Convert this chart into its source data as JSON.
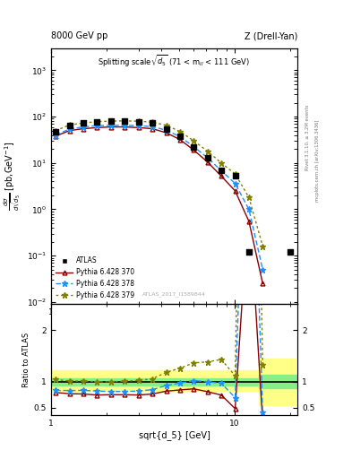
{
  "title_left": "8000 GeV pp",
  "title_right": "Z (Drell-Yan)",
  "panel_title": "Splitting scale $\\sqrt{d_5}$ (71 < m$_{ll}$ < 111 GeV)",
  "watermark": "ATLAS_2017_I1589844",
  "right_label1": "Rivet 3.1.10, ≥ 3.2M events",
  "right_label2": "mcplots.cern.ch [arXiv:1306.3436]",
  "atlas_x": [
    1.06,
    1.26,
    1.5,
    1.78,
    2.12,
    2.52,
    3.0,
    3.56,
    4.24,
    5.04,
    5.99,
    7.12,
    8.47,
    10.07,
    11.97,
    20.0
  ],
  "atlas_y": [
    48.0,
    65.0,
    72.0,
    78.0,
    80.0,
    80.0,
    78.0,
    72.0,
    55.0,
    38.0,
    22.0,
    13.0,
    7.0,
    5.2,
    0.12,
    0.12
  ],
  "py370_x": [
    1.06,
    1.26,
    1.5,
    1.78,
    2.12,
    2.52,
    3.0,
    3.56,
    4.24,
    5.04,
    5.99,
    7.12,
    8.47,
    10.07,
    11.97,
    14.23
  ],
  "py370_y": [
    38.0,
    50.0,
    55.0,
    58.0,
    60.0,
    60.0,
    58.0,
    55.0,
    45.0,
    32.0,
    19.0,
    10.5,
    5.2,
    2.5,
    0.55,
    0.025
  ],
  "py378_x": [
    1.06,
    1.26,
    1.5,
    1.78,
    2.12,
    2.52,
    3.0,
    3.56,
    4.24,
    5.04,
    5.99,
    7.12,
    8.47,
    10.07,
    11.97,
    14.23
  ],
  "py378_y": [
    40.0,
    54.0,
    60.0,
    64.0,
    65.0,
    65.0,
    64.0,
    61.0,
    51.0,
    37.0,
    22.5,
    13.0,
    6.8,
    3.6,
    1.0,
    0.05
  ],
  "py379_x": [
    1.06,
    1.26,
    1.5,
    1.78,
    2.12,
    2.52,
    3.0,
    3.56,
    4.24,
    5.04,
    5.99,
    7.12,
    8.47,
    10.07,
    11.97,
    14.23
  ],
  "py379_y": [
    50.0,
    66.0,
    73.0,
    78.0,
    80.0,
    81.0,
    80.0,
    76.0,
    65.0,
    48.0,
    30.0,
    18.0,
    10.0,
    5.8,
    1.8,
    0.16
  ],
  "atlas_color": "#000000",
  "py370_color": "#8B0000",
  "py378_color": "#1E90FF",
  "py379_color": "#808000",
  "band_yellow_lo": 0.82,
  "band_yellow_hi": 1.22,
  "band_green_lo": 0.93,
  "band_green_hi": 1.07,
  "band_yellow_color": "#FFFF88",
  "band_green_color": "#88EE88",
  "last_band_x": 13.5,
  "last_band_yellow_lo": 0.55,
  "last_band_yellow_hi": 1.45,
  "last_band_green_lo": 0.88,
  "last_band_green_hi": 1.13,
  "xlim": [
    1.0,
    22.0
  ],
  "ylim_main": [
    0.009,
    3000.0
  ],
  "ylim_ratio": [
    0.35,
    2.5
  ]
}
